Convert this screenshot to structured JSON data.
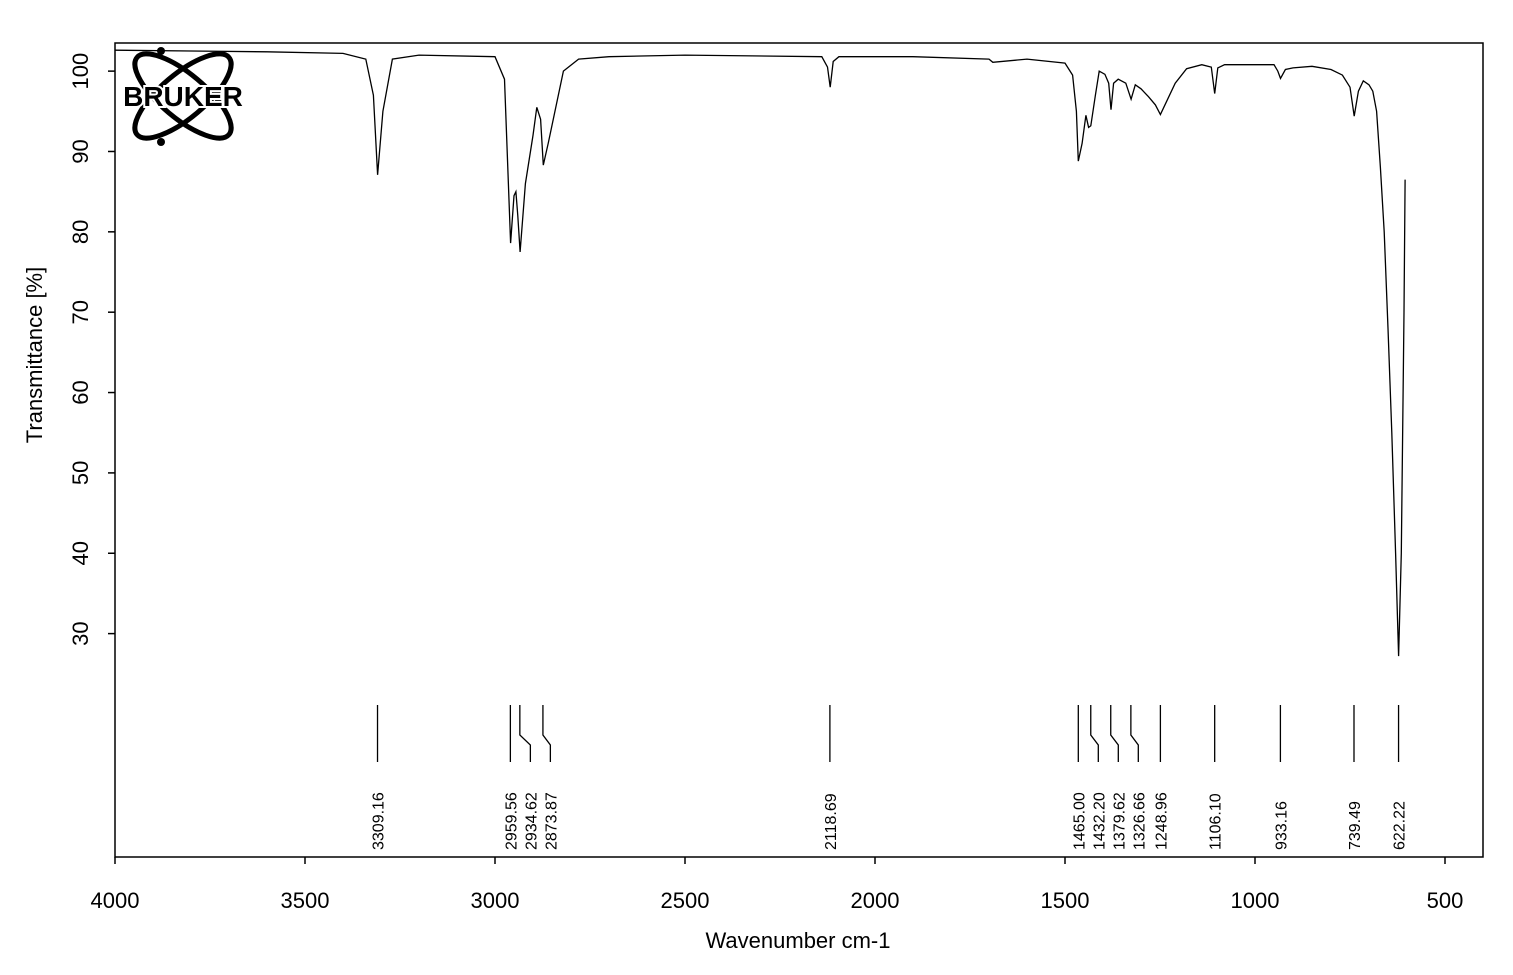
{
  "chart_data": {
    "type": "line",
    "logo": "BRUKER",
    "xlabel": "Wavenumber cm-1",
    "ylabel": "Transmittance [%]",
    "color": "#000000",
    "x": [
      4000,
      3800,
      3600,
      3400,
      3340,
      3320,
      3309,
      3295,
      3270,
      3200,
      3000,
      2975,
      2959,
      2950,
      2945,
      2940,
      2934,
      2920,
      2900,
      2890,
      2880,
      2873,
      2860,
      2840,
      2820,
      2780,
      2700,
      2500,
      2140,
      2125,
      2118,
      2110,
      2095,
      1900,
      1700,
      1690,
      1600,
      1500,
      1480,
      1470,
      1465,
      1455,
      1445,
      1438,
      1432,
      1420,
      1410,
      1395,
      1385,
      1379,
      1372,
      1360,
      1340,
      1326,
      1315,
      1300,
      1280,
      1262,
      1249,
      1235,
      1210,
      1180,
      1140,
      1115,
      1106,
      1098,
      1080,
      1000,
      950,
      940,
      933,
      920,
      900,
      850,
      800,
      770,
      750,
      739,
      728,
      715,
      700,
      690,
      680,
      670,
      660,
      650,
      640,
      630,
      622,
      615,
      608,
      605
    ],
    "values": [
      102.6,
      102.5,
      102.4,
      102.2,
      101.5,
      97,
      87.1,
      95,
      101.5,
      102,
      101.8,
      99,
      78.6,
      84.5,
      85,
      82,
      77.5,
      86,
      92,
      95.5,
      94,
      88.3,
      91,
      95.5,
      100,
      101.5,
      101.8,
      102,
      101.8,
      100.5,
      98,
      101.2,
      101.8,
      101.8,
      101.5,
      101.1,
      101.5,
      101,
      99.5,
      95,
      88.8,
      91,
      94.5,
      93,
      93.2,
      97,
      100,
      99.6,
      98.5,
      95.2,
      98.5,
      99,
      98.5,
      96.5,
      98.3,
      97.8,
      96.8,
      95.8,
      94.6,
      96,
      98.5,
      100.3,
      100.8,
      100.5,
      97.2,
      100.4,
      100.8,
      100.8,
      100.8,
      100,
      99.1,
      100.2,
      100.4,
      100.6,
      100.2,
      99.5,
      98,
      94.4,
      97.5,
      98.8,
      98.3,
      97.5,
      95,
      88,
      80,
      68,
      55,
      40,
      27.2,
      40,
      70,
      86.5
    ],
    "peaks": [
      3309.16,
      2959.56,
      2934.62,
      2873.87,
      2118.69,
      1465.0,
      1432.2,
      1379.62,
      1326.66,
      1248.96,
      1106.1,
      933.16,
      739.49,
      622.22
    ],
    "peak_labels": [
      "3309.16",
      "2959.56",
      "2934.62",
      "2873.87",
      "2118.69",
      "1465.00",
      "1432.20",
      "1379.62",
      "1326.66",
      "1248.96",
      "1106.10",
      "933.16",
      "739.49",
      "622.22"
    ],
    "xlim": [
      4000,
      400
    ],
    "ylim": [
      2.2,
      103.5
    ],
    "xticks": [
      4000,
      3500,
      3000,
      2500,
      2000,
      1500,
      1000,
      500
    ],
    "yticks": [
      30,
      40,
      50,
      60,
      70,
      80,
      90,
      100
    ]
  }
}
